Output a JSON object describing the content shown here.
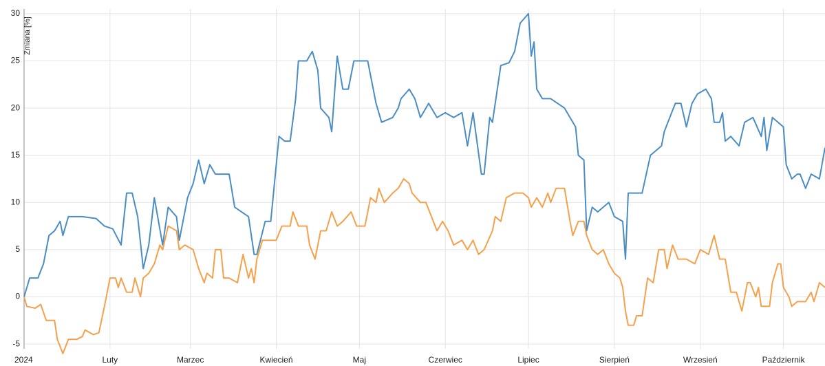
{
  "chart_data": {
    "type": "line",
    "y_label": "Zmiana [%]",
    "xlim": [
      0,
      289
    ],
    "xticks": [
      {
        "value": 0,
        "label": "2024"
      },
      {
        "value": 31,
        "label": "Luty"
      },
      {
        "value": 60,
        "label": "Marzec"
      },
      {
        "value": 91,
        "label": "Kwiecień"
      },
      {
        "value": 121,
        "label": "Maj"
      },
      {
        "value": 152,
        "label": "Czerwiec"
      },
      {
        "value": 182,
        "label": "Lipiec"
      },
      {
        "value": 213,
        "label": "Sierpień"
      },
      {
        "value": 244,
        "label": "Wrzesień"
      },
      {
        "value": 274,
        "label": "Październik"
      }
    ],
    "ylim": [
      -5.5,
      30.5
    ],
    "yticks": [
      -5,
      0,
      5,
      10,
      15,
      20,
      25,
      30
    ],
    "grid": true,
    "series": [
      {
        "color": "#4a8cc4",
        "x": [
          0,
          2,
          5,
          7,
          9,
          11,
          13,
          14,
          16,
          21,
          26,
          29,
          32,
          35,
          37,
          39,
          41,
          43,
          45,
          47,
          50,
          52,
          55,
          56,
          59,
          61,
          63,
          65,
          67,
          69,
          74,
          76,
          81,
          83,
          84,
          87,
          89,
          92,
          94,
          96,
          98,
          99,
          102,
          104,
          106,
          107,
          110,
          111,
          113,
          115,
          117,
          119,
          124,
          127,
          129,
          133,
          135,
          136,
          139,
          141,
          143,
          146,
          149,
          152,
          155,
          158,
          160,
          162,
          165,
          166,
          168,
          169,
          172,
          175,
          177,
          179,
          182,
          183,
          184,
          185,
          187,
          190,
          195,
          199,
          200,
          202,
          203,
          205,
          207,
          211,
          213,
          216,
          217,
          218,
          223,
          226,
          230,
          231,
          233,
          235,
          237,
          239,
          241,
          243,
          246,
          248,
          249,
          251,
          252,
          253,
          255,
          258,
          260,
          263,
          266,
          267,
          268,
          270,
          274,
          275,
          277,
          279,
          280,
          282,
          284,
          287,
          289
        ],
        "values": [
          0,
          2,
          2,
          3.5,
          6.5,
          7,
          8,
          6.5,
          8.5,
          8.5,
          8.3,
          7.5,
          7.2,
          5.5,
          11,
          11,
          8.5,
          3,
          5.5,
          10.5,
          5.5,
          9.5,
          8.5,
          6,
          10.5,
          12,
          14.5,
          12,
          14,
          13,
          13,
          9.5,
          8.5,
          4.5,
          4.5,
          8,
          8,
          17,
          16.5,
          16.5,
          21,
          25,
          25,
          26,
          24,
          20,
          19,
          17.5,
          25.5,
          22,
          22,
          25,
          25,
          20.5,
          18.5,
          19,
          20,
          21,
          22,
          21,
          19,
          20.5,
          19,
          19.5,
          19,
          19.5,
          16,
          19.5,
          13,
          13,
          19,
          18.5,
          24.5,
          24.8,
          26,
          29,
          30,
          25.5,
          27,
          22,
          21,
          21,
          20,
          18,
          15,
          14.5,
          7,
          9.5,
          9,
          10,
          8.5,
          8,
          4,
          11,
          11,
          15,
          16,
          17.5,
          19,
          20.5,
          20.5,
          18,
          20.5,
          21.5,
          22,
          21,
          18.5,
          18.5,
          19.5,
          16.5,
          17,
          16,
          18.5,
          19,
          17,
          19,
          15.5,
          19,
          18,
          14,
          12.5,
          13,
          13,
          11.5,
          13,
          12.5,
          15.8
        ]
      },
      {
        "color": "#f5a04a",
        "x": [
          0,
          1,
          4,
          6,
          8,
          11,
          12,
          14,
          16,
          19,
          21,
          22,
          25,
          27,
          29,
          31,
          33,
          34,
          35,
          37,
          39,
          40,
          42,
          43,
          45,
          47,
          49,
          50,
          52,
          55,
          56,
          58,
          61,
          63,
          65,
          66,
          68,
          69,
          71,
          72,
          74,
          77,
          79,
          81,
          82,
          83,
          84,
          86,
          91,
          93,
          96,
          97,
          99,
          102,
          103,
          105,
          107,
          109,
          111,
          113,
          115,
          118,
          120,
          123,
          125,
          127,
          128,
          130,
          133,
          135,
          137,
          139,
          140,
          143,
          145,
          147,
          149,
          151,
          153,
          155,
          158,
          160,
          162,
          164,
          166,
          169,
          170,
          172,
          174,
          177,
          180,
          182,
          183,
          185,
          187,
          189,
          190,
          192,
          195,
          197,
          198,
          200,
          202,
          203,
          205,
          207,
          209,
          211,
          213,
          215,
          216,
          217,
          218,
          220,
          221,
          223,
          225,
          227,
          229,
          231,
          232,
          234,
          236,
          239,
          242,
          244,
          247,
          249,
          251,
          253,
          255,
          257,
          259,
          261,
          262,
          264,
          265,
          266,
          269,
          270,
          272,
          273,
          274,
          276,
          277,
          279,
          282,
          284,
          285,
          287,
          289
        ],
        "values": [
          0,
          -1,
          -1.2,
          -0.8,
          -2.5,
          -2.5,
          -4.5,
          -6,
          -4.5,
          -4.5,
          -4.2,
          -3.5,
          -4,
          -3.8,
          -1,
          2,
          2,
          1,
          2,
          0.5,
          0.5,
          2,
          0,
          2,
          2.5,
          3.5,
          5.5,
          5,
          7.5,
          7,
          5,
          5.5,
          5,
          3,
          1.5,
          2.5,
          2,
          5,
          5,
          2,
          2,
          1.5,
          4.5,
          2,
          3,
          1.5,
          4,
          6,
          6,
          7.5,
          7.5,
          9,
          7.5,
          7.5,
          5.5,
          4,
          7,
          7,
          9,
          7.5,
          8,
          9,
          7.5,
          7.5,
          10.5,
          10,
          11.5,
          10,
          11,
          11.5,
          12.5,
          12,
          11,
          10,
          10,
          8.5,
          7,
          8,
          7,
          5.5,
          6,
          5,
          6,
          4.5,
          5,
          7,
          8.5,
          8,
          10.5,
          11,
          11,
          10.5,
          9.5,
          10.5,
          9.5,
          11,
          10,
          11.5,
          11.5,
          8,
          6.5,
          8,
          8,
          6.5,
          5,
          4.5,
          5,
          3.5,
          2.5,
          2,
          1,
          -1.5,
          -3,
          -3,
          -2,
          -2,
          2,
          1.5,
          5,
          5,
          3,
          5.5,
          4,
          4,
          3.5,
          5,
          4.5,
          6.5,
          4,
          4,
          0.5,
          0.5,
          -1.5,
          1.5,
          1.5,
          0,
          1,
          -1,
          -1,
          1.5,
          3.5,
          3.5,
          1,
          0,
          -1,
          -0.5,
          -0.5,
          0.5,
          -0.5,
          1.5,
          1
        ]
      }
    ]
  }
}
